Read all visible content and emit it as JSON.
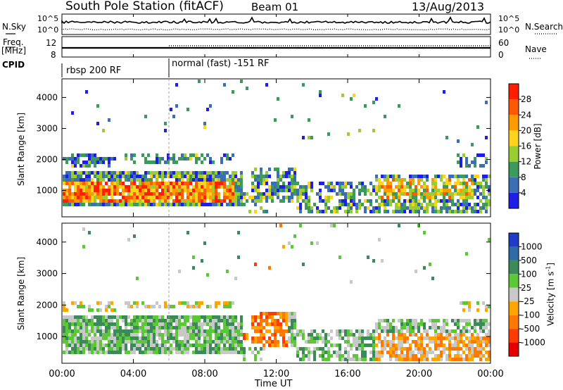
{
  "header": {
    "station": "South Pole Station (fitACF)",
    "beam": "Beam 01",
    "date": "13/Aug/2013"
  },
  "status_panels": {
    "nsky_label": "N.Sky",
    "nsearch_label": "N.Search",
    "freq_label_line1": "Freq.",
    "freq_label_line2": "[MHz]",
    "nave_label": "Nave",
    "cpid_label": "CPID",
    "nsky_ticks": [
      "10^5",
      "10^0"
    ],
    "nsearch_ticks": [
      "10^5",
      "10^0"
    ],
    "freq_ticks": [
      "12",
      "8"
    ],
    "nave_ticks": [
      "60",
      "0"
    ],
    "cpid_segments": [
      "rbsp 200 RF",
      "normal (fast) -151 RF"
    ]
  },
  "chart_data": [
    {
      "type": "heatmap",
      "title": "",
      "xlabel": "",
      "ylabel": "Slant Range [km]",
      "x_ticks": [
        "00:00",
        "04:00",
        "08:00",
        "12:00",
        "16:00",
        "20:00",
        "00:00"
      ],
      "y_ticks": [
        1000,
        2000,
        3000,
        4000
      ],
      "ylim": [
        150,
        4600
      ],
      "colorbar": {
        "label": "Power [dB]",
        "ticks": [
          4,
          8,
          12,
          16,
          20,
          24,
          28
        ],
        "colors": [
          "#1e1ee6",
          "#3c6eb4",
          "#3c9a5a",
          "#9acd32",
          "#ffd21e",
          "#ff9a00",
          "#ff5a00",
          "#ff1e00"
        ]
      }
    },
    {
      "type": "heatmap",
      "title": "",
      "xlabel": "Time UT",
      "ylabel": "Slant Range [km]",
      "x_ticks": [
        "00:00",
        "04:00",
        "08:00",
        "12:00",
        "16:00",
        "20:00",
        "00:00"
      ],
      "y_ticks": [
        1000,
        2000,
        3000,
        4000
      ],
      "ylim": [
        150,
        4600
      ],
      "colorbar": {
        "label": "Velocity [m s",
        "label_sup": "-1",
        "label_end": "]",
        "ticks": [
          "1000",
          "500",
          "100",
          "25",
          "-25",
          "-100",
          "-500",
          "-1000"
        ],
        "colors": [
          "#1e3cc8",
          "#2e6aa6",
          "#3c8a5a",
          "#5cc838",
          "#c8c8c8",
          "#ffa500",
          "#ff7800",
          "#ff3c00",
          "#e60000"
        ]
      }
    }
  ]
}
